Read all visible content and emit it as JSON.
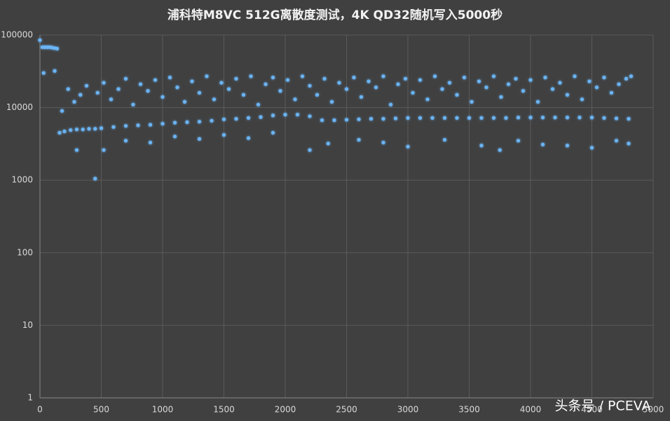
{
  "chart_data": {
    "type": "scatter",
    "title": "浦科特M8VC 512G离散度测试，4K QD32随机写入5000秒",
    "watermark": "头条号 / PCEVA",
    "log_y": true,
    "grid": true,
    "color": "#6ab4f5",
    "xlim": [
      0,
      5000
    ],
    "xticks": [
      0,
      500,
      1000,
      1500,
      2000,
      2500,
      3000,
      3500,
      4000,
      4500,
      5000
    ],
    "ylim": [
      1,
      100000
    ],
    "yticks": [
      1,
      10,
      100,
      1000,
      10000,
      100000
    ],
    "x": [
      0,
      20,
      40,
      60,
      80,
      100,
      120,
      140,
      160,
      200,
      250,
      300,
      350,
      400,
      450,
      500,
      600,
      700,
      800,
      900,
      1000,
      1100,
      1200,
      1300,
      1400,
      1500,
      1600,
      1700,
      1800,
      1900,
      2000,
      2100,
      2200,
      2300,
      2400,
      2500,
      2600,
      2700,
      2800,
      2900,
      3000,
      3100,
      3200,
      3300,
      3400,
      3500,
      3600,
      3700,
      3800,
      3900,
      4000,
      4100,
      4200,
      4300,
      4400,
      4500,
      4600,
      4700,
      4800,
      30,
      120,
      180,
      230,
      280,
      330,
      380,
      450,
      470,
      520,
      580,
      640,
      700,
      760,
      820,
      880,
      940,
      1000,
      1060,
      1120,
      1180,
      1240,
      1300,
      1360,
      1420,
      1480,
      1540,
      1600,
      1660,
      1720,
      1780,
      1840,
      1900,
      1960,
      2020,
      2080,
      2140,
      2200,
      2260,
      2320,
      2380,
      2440,
      2500,
      2560,
      2620,
      2680,
      2740,
      2800,
      2860,
      2920,
      2980,
      3040,
      3100,
      3160,
      3220,
      3280,
      3340,
      3400,
      3460,
      3520,
      3580,
      3640,
      3700,
      3760,
      3820,
      3880,
      3940,
      4000,
      4060,
      4120,
      4180,
      4240,
      4300,
      4360,
      4420,
      4480,
      4540,
      4600,
      4660,
      4720,
      4780,
      4820,
      300,
      520,
      700,
      900,
      1100,
      1300,
      1500,
      1700,
      1900,
      2200,
      2350,
      2600,
      2800,
      3000,
      3300,
      3600,
      3750,
      3900,
      4100,
      4300,
      4500,
      4700,
      4800
    ],
    "y": [
      85000,
      68000,
      68000,
      68000,
      68000,
      67000,
      66000,
      65000,
      4500,
      4700,
      4900,
      5000,
      5000,
      5100,
      5100,
      5200,
      5400,
      5600,
      5700,
      5800,
      6000,
      6200,
      6300,
      6400,
      6600,
      6900,
      7000,
      7200,
      7400,
      7800,
      8000,
      8000,
      7600,
      6700,
      6700,
      6800,
      6900,
      7000,
      7000,
      7100,
      7200,
      7200,
      7200,
      7200,
      7200,
      7200,
      7200,
      7200,
      7200,
      7300,
      7300,
      7300,
      7300,
      7300,
      7300,
      7300,
      7200,
      7100,
      7000,
      30000,
      32000,
      9000,
      18000,
      12000,
      15000,
      20000,
      1050,
      16000,
      22000,
      13000,
      18000,
      25000,
      11000,
      21000,
      17000,
      24000,
      14000,
      26000,
      19000,
      12000,
      23000,
      16000,
      27000,
      13000,
      22000,
      18000,
      25000,
      15000,
      27000,
      11000,
      21000,
      26000,
      17000,
      24000,
      13000,
      27000,
      20000,
      15000,
      25000,
      12000,
      22000,
      18000,
      26000,
      14000,
      23000,
      19000,
      27000,
      11000,
      21000,
      25000,
      16000,
      24000,
      13000,
      27000,
      18000,
      22000,
      15000,
      26000,
      12000,
      23000,
      19000,
      27000,
      14000,
      21000,
      25000,
      17000,
      24000,
      12000,
      26000,
      18000,
      22000,
      15000,
      27000,
      13000,
      23000,
      19000,
      26000,
      16000,
      21000,
      25000,
      27000,
      2600,
      2600,
      3500,
      3300,
      4000,
      3700,
      4200,
      3800,
      4500,
      2600,
      3200,
      3600,
      3300,
      2900,
      3600,
      3000,
      2600,
      3500,
      3100,
      3000,
      2800,
      3500,
      3200
    ]
  }
}
